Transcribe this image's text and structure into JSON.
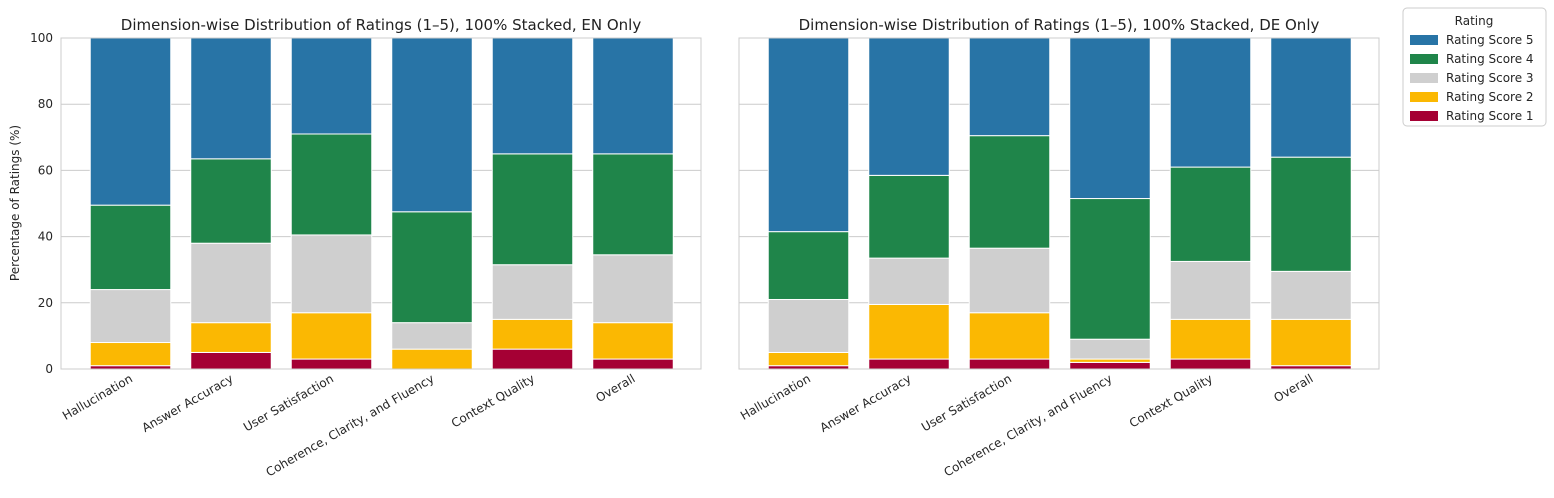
{
  "chart_data": {
    "type": "bar",
    "stacked": true,
    "ylabel": "Percentage of Ratings (%)",
    "ylim": [
      0,
      100
    ],
    "yticks": [
      0,
      20,
      40,
      60,
      80,
      100
    ],
    "grid": true,
    "legend": {
      "title": "Rating",
      "placement": "outside-top-right",
      "order": [
        "Rating Score 5",
        "Rating Score 4",
        "Rating Score 3",
        "Rating Score 2",
        "Rating Score 1"
      ]
    },
    "colors": {
      "Rating Score 1": "#a50034",
      "Rating Score 2": "#fbb802",
      "Rating Score 3": "#cfcfcf",
      "Rating Score 4": "#1f854a",
      "Rating Score 5": "#2874a6"
    },
    "panels": [
      {
        "title": "Dimension-wise Distribution of Ratings (1–5), 100% Stacked, EN Only",
        "categories": [
          "Hallucination",
          "Answer Accuracy",
          "User Satisfaction",
          "Coherence, Clarity, and Fluency",
          "Context Quality",
          "Overall"
        ],
        "series": [
          {
            "name": "Rating Score 1",
            "values": [
              1,
              5,
              3,
              0,
              6,
              3
            ]
          },
          {
            "name": "Rating Score 2",
            "values": [
              7,
              9,
              14,
              6,
              9,
              11
            ]
          },
          {
            "name": "Rating Score 3",
            "values": [
              16,
              24,
              23.5,
              8,
              16.5,
              20.5
            ]
          },
          {
            "name": "Rating Score 4",
            "values": [
              25.5,
              25.5,
              30.5,
              33.5,
              33.5,
              30.5
            ]
          },
          {
            "name": "Rating Score 5",
            "values": [
              50.5,
              36.5,
              29,
              52.5,
              35,
              35
            ]
          }
        ]
      },
      {
        "title": "Dimension-wise Distribution of Ratings (1–5), 100% Stacked, DE Only",
        "categories": [
          "Hallucination",
          "Answer Accuracy",
          "User Satisfaction",
          "Coherence, Clarity, and Fluency",
          "Context Quality",
          "Overall"
        ],
        "series": [
          {
            "name": "Rating Score 1",
            "values": [
              1,
              3,
              3,
              2,
              3,
              1
            ]
          },
          {
            "name": "Rating Score 2",
            "values": [
              4,
              16.5,
              14,
              1,
              12,
              14
            ]
          },
          {
            "name": "Rating Score 3",
            "values": [
              16,
              14,
              19.5,
              6,
              17.5,
              14.5
            ]
          },
          {
            "name": "Rating Score 4",
            "values": [
              20.5,
              25,
              34,
              42.5,
              28.5,
              34.5
            ]
          },
          {
            "name": "Rating Score 5",
            "values": [
              58.5,
              41.5,
              29.5,
              48.5,
              39,
              36
            ]
          }
        ]
      }
    ]
  }
}
